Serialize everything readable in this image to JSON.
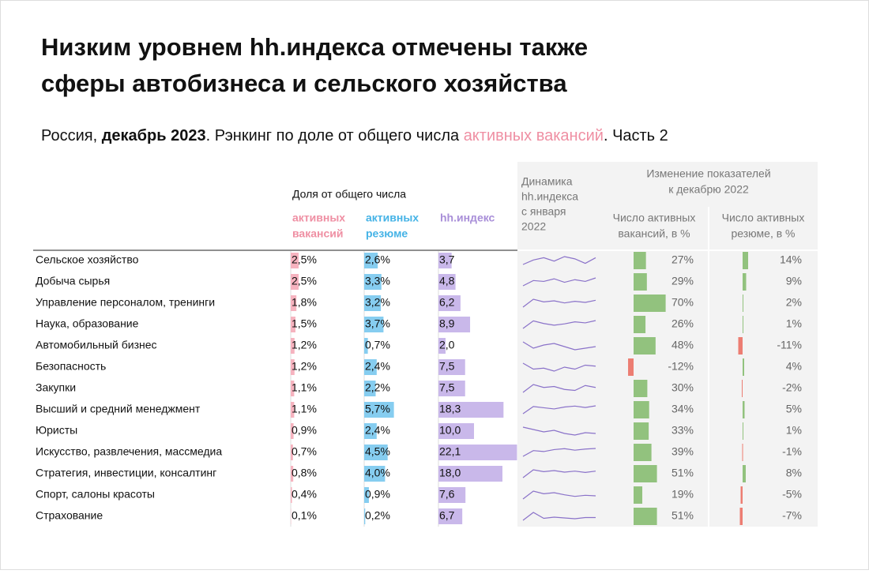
{
  "chart_data": {
    "type": "table-bars",
    "title_lines": [
      "Низким уровнем hh.индекса отмечены также",
      "сферы автобизнеса и сельского хозяйства"
    ],
    "subtitle_parts": [
      "Россия, ",
      "декабрь 2023",
      ". Рэнкинг по доле от общего числа ",
      "активных вакансий",
      ". Часть 2"
    ],
    "group_header": "Доля от общего числа",
    "categories": [
      "Сельское хозяйство",
      "Добыча сырья",
      "Управление персоналом, тренинги",
      "Наука, образование",
      "Автомобильный бизнес",
      "Безопасность",
      "Закупки",
      "Высший и средний менеджмент",
      "Юристы",
      "Искусство, развлечения, массмедиа",
      "Стратегия, инвестиции, консалтинг",
      "Спорт, салоны красоты",
      "Страхование"
    ],
    "series": [
      {
        "name_lines": [
          "активных",
          "вакансий"
        ],
        "color": "#f6b3bf",
        "text_color": "#ef8fa3",
        "values": [
          2.5,
          2.5,
          1.8,
          1.5,
          1.2,
          1.2,
          1.1,
          1.1,
          0.9,
          0.7,
          0.8,
          0.4,
          0.1
        ],
        "value_labels": [
          "2,5%",
          "2,5%",
          "1,8%",
          "1,5%",
          "1,2%",
          "1,2%",
          "1,1%",
          "1,1%",
          "0,9%",
          "0,7%",
          "0,8%",
          "0,4%",
          "0,1%"
        ]
      },
      {
        "name_lines": [
          "активных",
          "резюме"
        ],
        "color": "#86cdf0",
        "text_color": "#45b3e6",
        "values": [
          2.6,
          3.3,
          3.2,
          3.7,
          0.7,
          2.4,
          2.2,
          5.7,
          2.4,
          4.5,
          4.0,
          0.9,
          0.2
        ],
        "value_labels": [
          "2,6%",
          "3,3%",
          "3,2%",
          "3,7%",
          "0,7%",
          "2,4%",
          "2,2%",
          "5,7%",
          "2,4%",
          "4,5%",
          "4,0%",
          "0,9%",
          "0,2%"
        ]
      },
      {
        "name_lines": [
          "hh.индекс"
        ],
        "color": "#c9b8ea",
        "text_color": "#a88ed8",
        "values": [
          3.7,
          4.8,
          6.2,
          8.9,
          2.0,
          7.5,
          7.5,
          18.3,
          10.0,
          22.1,
          18.0,
          7.6,
          6.7
        ],
        "value_labels": [
          "3,7",
          "4,8",
          "6,2",
          "8,9",
          "2,0",
          "7,5",
          "7,5",
          "18,3",
          "10,0",
          "22,1",
          "18,0",
          "7,6",
          "6,7"
        ]
      }
    ],
    "trend": {
      "header_lines": [
        "Динамика",
        "hh.индекса",
        "с января",
        "2022"
      ],
      "color": "#8a72c9",
      "values": [
        [
          3.2,
          3.6,
          3.8,
          3.5,
          3.9,
          3.7,
          3.3,
          3.8
        ],
        [
          4.0,
          4.6,
          4.5,
          4.8,
          4.4,
          4.7,
          4.5,
          4.9
        ],
        [
          5.0,
          6.5,
          6.0,
          6.2,
          5.8,
          6.1,
          5.9,
          6.3
        ],
        [
          6.5,
          8.8,
          8.0,
          7.5,
          7.9,
          8.5,
          8.2,
          8.9
        ],
        [
          2.6,
          2.2,
          2.4,
          2.5,
          2.3,
          2.1,
          2.2,
          2.3
        ],
        [
          7.8,
          7.2,
          7.3,
          7.0,
          7.4,
          7.2,
          7.6,
          7.5
        ],
        [
          7.0,
          7.8,
          7.5,
          7.6,
          7.3,
          7.2,
          7.7,
          7.5
        ],
        [
          15.0,
          18.0,
          17.5,
          17.0,
          17.8,
          18.2,
          17.6,
          18.3
        ],
        [
          10.8,
          10.5,
          10.2,
          10.4,
          10.0,
          9.8,
          10.1,
          10.0
        ],
        [
          18.0,
          21.0,
          20.5,
          21.5,
          22.0,
          21.2,
          21.8,
          22.1
        ],
        [
          15.5,
          18.5,
          17.8,
          18.2,
          17.6,
          18.0,
          17.5,
          18.0
        ],
        [
          7.0,
          8.5,
          8.0,
          8.2,
          7.8,
          7.5,
          7.7,
          7.6
        ],
        [
          6.0,
          8.0,
          6.5,
          6.8,
          6.6,
          6.4,
          6.7,
          6.7
        ]
      ]
    },
    "change": {
      "header_lines": [
        "Изменение показателей",
        "к декабрю 2022"
      ],
      "pos_color": "#92c27e",
      "neg_color": "#ec7d72",
      "series": [
        {
          "name_lines": [
            "Число активных",
            "вакансий, в %"
          ],
          "values": [
            27,
            29,
            70,
            26,
            48,
            -12,
            30,
            34,
            33,
            39,
            51,
            19,
            51
          ],
          "value_labels": [
            "27%",
            "29%",
            "70%",
            "26%",
            "48%",
            "-12%",
            "30%",
            "34%",
            "33%",
            "39%",
            "51%",
            "19%",
            "51%"
          ]
        },
        {
          "name_lines": [
            "Число активных",
            "резюме, в %"
          ],
          "values": [
            14,
            9,
            2,
            1,
            -11,
            4,
            -2,
            5,
            1,
            -1,
            8,
            -5,
            -7
          ],
          "value_labels": [
            "14%",
            "9%",
            "2%",
            "1%",
            "-11%",
            "4%",
            "-2%",
            "5%",
            "1%",
            "-1%",
            "8%",
            "-5%",
            "-7%"
          ]
        }
      ]
    }
  }
}
